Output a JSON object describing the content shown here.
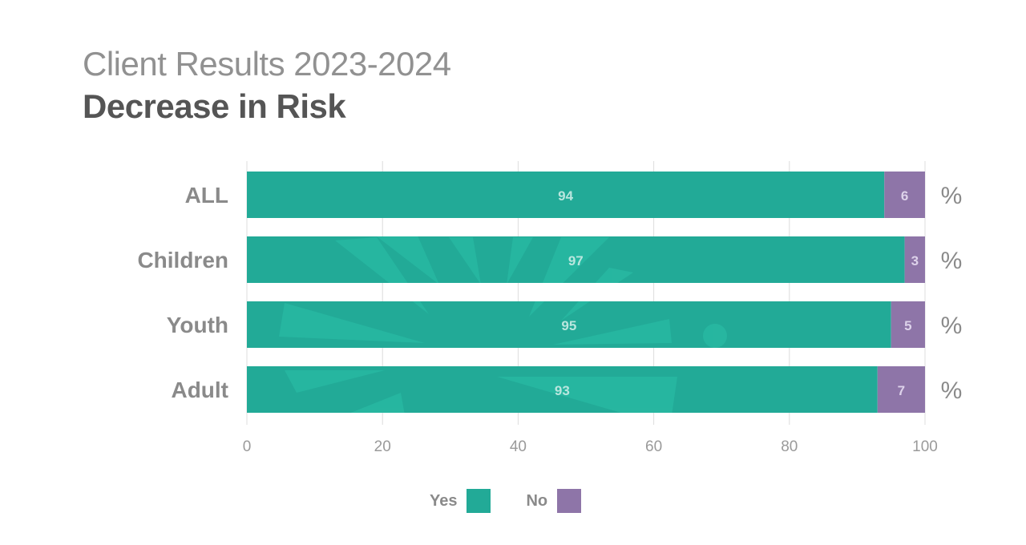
{
  "title": "Client Results 2023-2024",
  "subtitle": "Decrease in Risk",
  "unit_label": "%",
  "colors": {
    "yes": "#22aa97",
    "no": "#8e75a8",
    "watermark": "#2bbfa8"
  },
  "legend": [
    {
      "label": "Yes",
      "color": "#22aa97"
    },
    {
      "label": "No",
      "color": "#8e75a8"
    }
  ],
  "chart_data": {
    "type": "bar",
    "orientation": "horizontal",
    "stacked": true,
    "categories": [
      "ALL",
      "Children",
      "Youth",
      "Adult"
    ],
    "series": [
      {
        "name": "Yes",
        "values": [
          94,
          97,
          95,
          93
        ]
      },
      {
        "name": "No",
        "values": [
          6,
          3,
          5,
          7
        ]
      }
    ],
    "xlim": [
      0,
      100
    ],
    "xticks": [
      0,
      20,
      40,
      60,
      80,
      100
    ],
    "grid": true,
    "legend_position": "bottom"
  }
}
